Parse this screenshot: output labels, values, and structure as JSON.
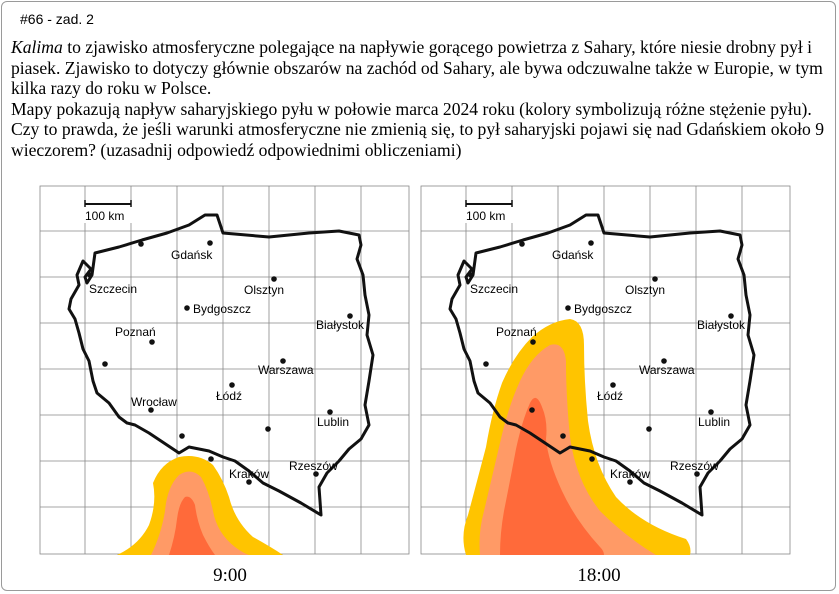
{
  "task_label": "#66 - zad. 2",
  "paragraph1": {
    "term": "Kalima",
    "rest": " to zjawisko atmosferyczne polegające na napływie gorącego powietrza z Sahary, które niesie drobny pył i piasek.  Zjawisko to dotyczy głównie obszarów na zachód od Sahary, ale bywa odczuwalne także w Europie, w tym kilka razy do roku w Polsce."
  },
  "paragraph2": "Mapy pokazują napływ saharyjskiego pyłu w połowie marca 2024 roku (kolory symbolizują różne stężenie pyłu). Czy to prawda, że jeśli warunki atmosferyczne nie zmienią się, to pył saharyjski pojawi się nad Gdańskiem około 9 wieczorem? (uzasadnij odpowiedź odpowiednimi obliczeniami)",
  "scale_label": "100 km",
  "cities": {
    "gdansk": "Gdańsk",
    "szczecin": "Szczecin",
    "olsztyn": "Olsztyn",
    "bydgoszcz": "Bydgoszcz",
    "bialystok": "Białystok",
    "poznan": "Poznań",
    "warszawa": "Warszawa",
    "lodz": "Łódź",
    "wroclaw": "Wrocław",
    "lublin": "Lublin",
    "krakow": "Kraków",
    "rzeszow": "Rzeszów"
  },
  "maps": [
    {
      "time": "9:00"
    },
    {
      "time": "18:00"
    }
  ],
  "colors": {
    "dust_low": "#FFC400",
    "dust_mid": "#FF9A66",
    "dust_high": "#FF6A3A",
    "border": "#111111",
    "grid": "#888888"
  }
}
